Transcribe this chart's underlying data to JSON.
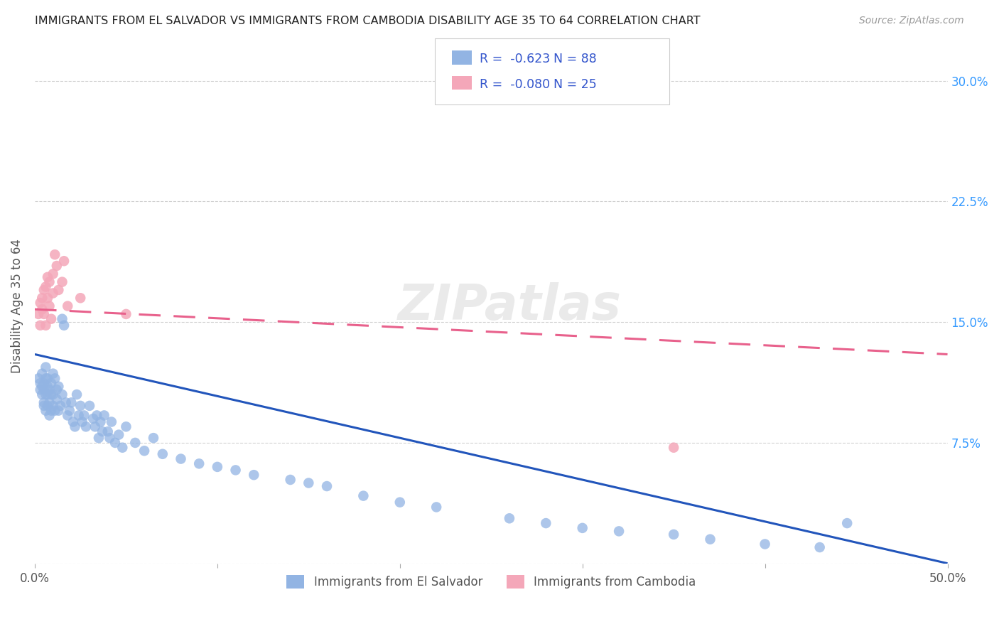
{
  "title": "IMMIGRANTS FROM EL SALVADOR VS IMMIGRANTS FROM CAMBODIA DISABILITY AGE 35 TO 64 CORRELATION CHART",
  "source": "Source: ZipAtlas.com",
  "ylabel": "Disability Age 35 to 64",
  "xlim": [
    0.0,
    0.5
  ],
  "ylim": [
    0.0,
    0.32
  ],
  "color_salvador": "#92b4e3",
  "color_cambodia": "#f4a7b9",
  "color_line_salvador": "#2255bb",
  "color_line_cambodia": "#e8618c",
  "legend_label_1": "Immigrants from El Salvador",
  "legend_label_2": "Immigrants from Cambodia",
  "watermark": "ZIPatlas",
  "sal_line_x0": 0.0,
  "sal_line_y0": 0.13,
  "sal_line_x1": 0.5,
  "sal_line_y1": 0.0,
  "cam_line_x0": 0.0,
  "cam_line_y0": 0.158,
  "cam_line_x1": 0.5,
  "cam_line_y1": 0.13,
  "scatter_salvador_x": [
    0.002,
    0.003,
    0.003,
    0.004,
    0.004,
    0.004,
    0.005,
    0.005,
    0.005,
    0.005,
    0.006,
    0.006,
    0.006,
    0.006,
    0.007,
    0.007,
    0.007,
    0.007,
    0.008,
    0.008,
    0.008,
    0.009,
    0.009,
    0.009,
    0.01,
    0.01,
    0.01,
    0.011,
    0.011,
    0.012,
    0.012,
    0.013,
    0.013,
    0.014,
    0.015,
    0.015,
    0.016,
    0.017,
    0.018,
    0.019,
    0.02,
    0.021,
    0.022,
    0.023,
    0.024,
    0.025,
    0.026,
    0.027,
    0.028,
    0.03,
    0.032,
    0.033,
    0.034,
    0.035,
    0.036,
    0.037,
    0.038,
    0.04,
    0.041,
    0.042,
    0.044,
    0.046,
    0.048,
    0.05,
    0.055,
    0.06,
    0.065,
    0.07,
    0.08,
    0.09,
    0.1,
    0.11,
    0.12,
    0.14,
    0.15,
    0.16,
    0.18,
    0.2,
    0.22,
    0.26,
    0.28,
    0.3,
    0.32,
    0.35,
    0.37,
    0.4,
    0.43,
    0.445
  ],
  "scatter_salvador_y": [
    0.115,
    0.112,
    0.108,
    0.11,
    0.105,
    0.118,
    0.1,
    0.108,
    0.112,
    0.098,
    0.115,
    0.105,
    0.095,
    0.122,
    0.11,
    0.098,
    0.105,
    0.115,
    0.092,
    0.108,
    0.1,
    0.112,
    0.095,
    0.105,
    0.098,
    0.118,
    0.105,
    0.095,
    0.115,
    0.102,
    0.108,
    0.095,
    0.11,
    0.098,
    0.152,
    0.105,
    0.148,
    0.1,
    0.092,
    0.095,
    0.1,
    0.088,
    0.085,
    0.105,
    0.092,
    0.098,
    0.088,
    0.092,
    0.085,
    0.098,
    0.09,
    0.085,
    0.092,
    0.078,
    0.088,
    0.082,
    0.092,
    0.082,
    0.078,
    0.088,
    0.075,
    0.08,
    0.072,
    0.085,
    0.075,
    0.07,
    0.078,
    0.068,
    0.065,
    0.062,
    0.06,
    0.058,
    0.055,
    0.052,
    0.05,
    0.048,
    0.042,
    0.038,
    0.035,
    0.028,
    0.025,
    0.022,
    0.02,
    0.018,
    0.015,
    0.012,
    0.01,
    0.025
  ],
  "scatter_cambodia_x": [
    0.002,
    0.003,
    0.003,
    0.004,
    0.004,
    0.005,
    0.005,
    0.006,
    0.006,
    0.007,
    0.007,
    0.008,
    0.008,
    0.009,
    0.01,
    0.01,
    0.011,
    0.012,
    0.013,
    0.015,
    0.016,
    0.018,
    0.025,
    0.05,
    0.35
  ],
  "scatter_cambodia_y": [
    0.155,
    0.148,
    0.162,
    0.158,
    0.165,
    0.155,
    0.17,
    0.148,
    0.172,
    0.178,
    0.165,
    0.175,
    0.16,
    0.152,
    0.168,
    0.18,
    0.192,
    0.185,
    0.17,
    0.175,
    0.188,
    0.16,
    0.165,
    0.155,
    0.072
  ]
}
